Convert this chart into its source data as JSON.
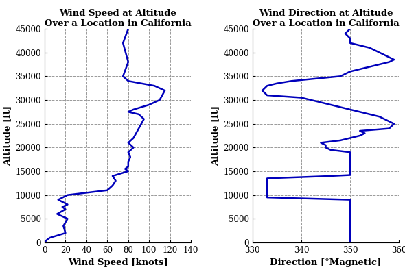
{
  "wind_speed": {
    "title_line1": "Wind Speed at Altitude",
    "title_line2": "Over a Location in California",
    "xlabel": "Wind Speed [knots]",
    "ylabel": "Altitude [ft]",
    "xlim": [
      0,
      140
    ],
    "ylim": [
      0,
      45000
    ],
    "xticks": [
      0,
      20,
      40,
      60,
      80,
      100,
      120,
      140
    ],
    "yticks": [
      0,
      5000,
      10000,
      15000,
      20000,
      25000,
      30000,
      35000,
      40000,
      45000
    ],
    "speed": [
      0,
      2,
      5,
      20,
      18,
      22,
      12,
      20,
      17,
      22,
      13,
      22,
      60,
      65,
      68,
      65,
      80,
      77,
      80,
      80,
      82,
      80,
      85,
      80,
      85,
      90,
      95,
      90,
      80,
      85,
      100,
      110,
      115,
      105,
      80,
      75,
      80,
      75,
      80
    ],
    "altitude": [
      0,
      500,
      1000,
      2000,
      3500,
      5000,
      6000,
      7000,
      7500,
      8000,
      9000,
      10000,
      11000,
      12000,
      13000,
      14000,
      15000,
      15500,
      16000,
      17000,
      18000,
      19000,
      20000,
      21000,
      22000,
      24000,
      26000,
      27000,
      27500,
      28000,
      29000,
      30000,
      32000,
      33000,
      34000,
      35000,
      38000,
      42000,
      45000
    ]
  },
  "wind_direction": {
    "title_line1": "Wind Direction at Altitude",
    "title_line2": "Over a Location in California",
    "xlabel": "Direction [°Magnetic]",
    "ylabel": "Altitude [ft]",
    "xlim": [
      330,
      360
    ],
    "ylim": [
      0,
      45000
    ],
    "xticks": [
      330,
      340,
      350,
      360
    ],
    "yticks": [
      0,
      5000,
      10000,
      15000,
      20000,
      25000,
      30000,
      35000,
      40000,
      45000
    ],
    "direction": [
      350,
      350,
      350,
      350,
      350,
      350,
      350,
      350,
      350,
      350,
      333,
      333,
      333,
      333,
      333,
      333,
      333,
      333,
      333,
      346,
      350,
      350,
      350,
      350,
      350,
      350,
      350,
      350,
      346,
      345,
      345,
      344,
      348,
      350,
      352,
      353,
      352,
      358,
      359,
      357,
      356,
      354,
      352,
      350,
      348,
      346,
      344,
      342,
      340,
      333,
      332,
      333,
      335,
      338,
      348,
      350,
      352,
      354,
      356,
      358,
      359,
      358,
      356,
      354,
      350,
      350,
      349,
      350
    ],
    "altitude": [
      0,
      1000,
      2000,
      3000,
      4000,
      5000,
      6000,
      7000,
      8000,
      9000,
      9500,
      10000,
      10500,
      11000,
      11500,
      12000,
      12500,
      13000,
      13500,
      14000,
      14200,
      14500,
      15000,
      15500,
      16000,
      17000,
      18000,
      19000,
      19500,
      20000,
      20500,
      21000,
      21500,
      22000,
      22500,
      23000,
      23500,
      24000,
      25000,
      26000,
      26500,
      27000,
      27500,
      28000,
      28500,
      29000,
      29500,
      30000,
      30500,
      31000,
      32000,
      33000,
      33500,
      34000,
      35000,
      36000,
      36500,
      37000,
      37500,
      38000,
      38500,
      39000,
      40000,
      41000,
      42000,
      43000,
      44000,
      45000
    ]
  },
  "line_color": "#0000bb",
  "line_width": 1.8,
  "bg_color": "#ffffff",
  "grid_color": "#999999",
  "title_fontsize": 9.5,
  "label_fontsize": 9.5,
  "tick_fontsize": 8.5
}
